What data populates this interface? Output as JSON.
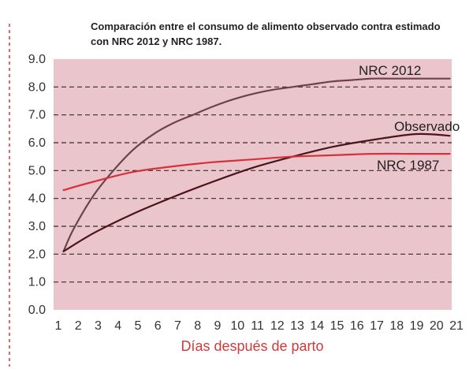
{
  "chart_data": {
    "type": "line",
    "title_lines": [
      "Comparación entre el consumo de alimento observado contra estimado",
      "con NRC 2012 y NRC 1987."
    ],
    "xlabel": "Días después de parto",
    "ylabel": "",
    "xlim": [
      1,
      21
    ],
    "ylim": [
      0,
      9
    ],
    "x_ticks": [
      "1",
      "2",
      "3",
      "4",
      "5",
      "6",
      "7",
      "8",
      "9",
      "10",
      "11",
      "12",
      "13",
      "14",
      "15",
      "16",
      "17",
      "18",
      "19",
      "20",
      "21"
    ],
    "y_ticks": [
      "0.0",
      "1.0",
      "2.0",
      "3.0",
      "4.0",
      "5.0",
      "6.0",
      "7.0",
      "8.0",
      "9.0"
    ],
    "grid": "horizontal dashed",
    "series": [
      {
        "name": "NRC 2012",
        "color": "#6b4448",
        "x": [
          1.5,
          2,
          3,
          4,
          5,
          6,
          7,
          8,
          9,
          10,
          11,
          12,
          13,
          14,
          15,
          16,
          17,
          18,
          19,
          20,
          20.9
        ],
        "values": [
          2.1,
          2.9,
          4.1,
          5.0,
          5.75,
          6.3,
          6.7,
          7.0,
          7.3,
          7.55,
          7.75,
          7.9,
          8.0,
          8.1,
          8.2,
          8.25,
          8.3,
          8.3,
          8.3,
          8.3,
          8.3
        ]
      },
      {
        "name": "Observado",
        "color": "#4a1418",
        "x": [
          1.5,
          3,
          5,
          7,
          9,
          11,
          13,
          15,
          17,
          19,
          20,
          20.9
        ],
        "values": [
          2.1,
          2.75,
          3.45,
          4.05,
          4.6,
          5.1,
          5.5,
          5.85,
          6.1,
          6.3,
          6.3,
          6.25
        ]
      },
      {
        "name": "NRC 1987",
        "color": "#d8303a",
        "x": [
          1.5,
          3,
          5,
          7,
          9,
          11,
          13,
          15,
          17,
          19,
          20.9
        ],
        "values": [
          4.3,
          4.6,
          4.95,
          5.15,
          5.3,
          5.4,
          5.5,
          5.55,
          5.6,
          5.6,
          5.6
        ]
      }
    ],
    "colors": {
      "plot_background": "#ebc5cc",
      "grid": "#3a2a2a",
      "left_border": "#d23a3a"
    }
  }
}
